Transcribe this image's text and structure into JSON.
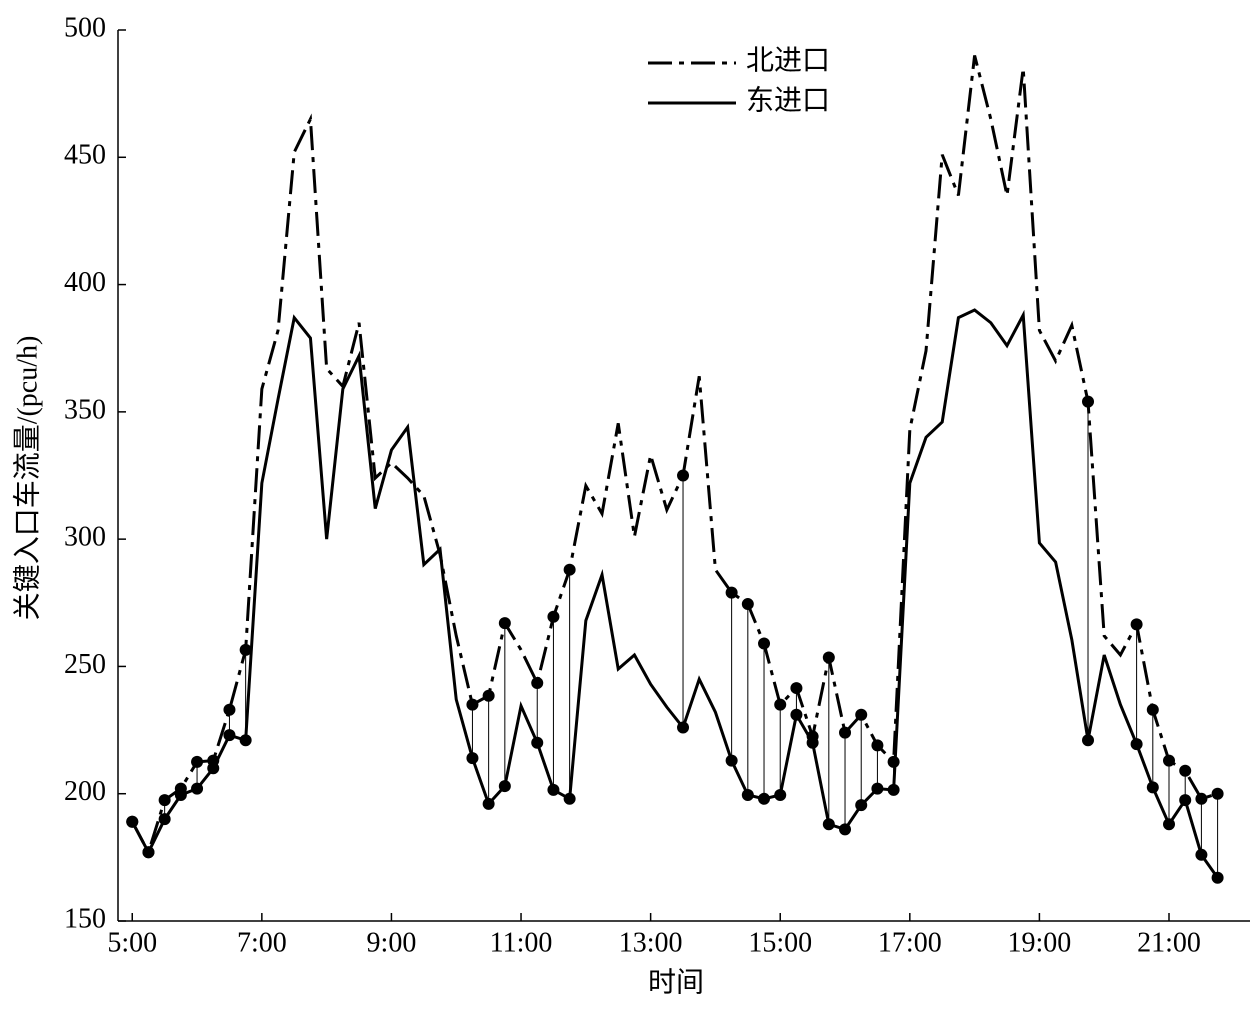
{
  "chart_data": {
    "type": "line",
    "xlabel": "时间",
    "ylabel": "关键入口车流量/(pcu/h)",
    "x": [
      5,
      5.25,
      5.5,
      5.75,
      6,
      6.25,
      6.5,
      6.75,
      7,
      7.25,
      7.5,
      7.75,
      8,
      8.25,
      8.5,
      8.75,
      9,
      9.25,
      9.5,
      9.75,
      10,
      10.25,
      10.5,
      10.75,
      11,
      11.25,
      11.5,
      11.75,
      12,
      12.25,
      12.5,
      12.75,
      13,
      13.25,
      13.5,
      13.75,
      14,
      14.25,
      14.5,
      14.75,
      15,
      15.25,
      15.5,
      15.75,
      16,
      16.25,
      16.5,
      16.75,
      17,
      17.25,
      17.5,
      17.75,
      18,
      18.25,
      18.5,
      18.75,
      19,
      19.25,
      19.5,
      19.75,
      20,
      20.25,
      20.5,
      20.75,
      21,
      21.25,
      21.5,
      21.75
    ],
    "series": [
      {
        "name": "北进口",
        "color": "#000000",
        "dash": "dashdot",
        "values": [
          189,
          177,
          197.5,
          202,
          212.5,
          213,
          233,
          256.5,
          359,
          382,
          452,
          465,
          367,
          360,
          385,
          324,
          330,
          324,
          317,
          294,
          262,
          235,
          238.5,
          267,
          256.5,
          243.5,
          269.5,
          288,
          321,
          310,
          345.5,
          301,
          333,
          311.5,
          325,
          364,
          288,
          279,
          274.5,
          259,
          235,
          241.5,
          222.5,
          253.5,
          224,
          231,
          219,
          212.5,
          343,
          374,
          451,
          435,
          490,
          465,
          435,
          485,
          382,
          370,
          384,
          354,
          262,
          254.5,
          266.5,
          233,
          213,
          209,
          198,
          200
        ],
        "markers": [
          0,
          1,
          2,
          3,
          4,
          5,
          6,
          7,
          21,
          22,
          23,
          25,
          26,
          27,
          34,
          37,
          38,
          39,
          40,
          41,
          42,
          43,
          44,
          45,
          46,
          47,
          59,
          62,
          63,
          64,
          65,
          66,
          67
        ]
      },
      {
        "name": "东进口",
        "color": "#000000",
        "dash": "solid",
        "values": [
          189,
          177,
          190,
          199.5,
          202,
          210,
          223,
          221,
          322,
          355,
          387,
          379,
          300,
          359,
          372,
          312,
          335,
          344,
          290,
          296,
          237,
          214,
          196,
          203,
          234.5,
          220,
          201.5,
          198,
          268,
          286,
          249,
          254.5,
          243,
          234,
          226,
          245,
          232,
          213,
          199.5,
          198,
          199.5,
          231,
          220,
          188,
          186,
          195.5,
          202,
          201.5,
          322,
          340,
          346,
          387,
          390,
          385,
          376,
          388,
          298.5,
          291,
          260.5,
          221,
          254.5,
          235,
          219.5,
          202.5,
          188,
          197.5,
          176,
          167
        ],
        "markers": [
          0,
          1,
          2,
          3,
          4,
          5,
          6,
          7,
          21,
          22,
          23,
          25,
          26,
          27,
          34,
          37,
          38,
          39,
          40,
          41,
          42,
          43,
          44,
          45,
          46,
          47,
          59,
          62,
          63,
          64,
          65,
          66,
          67
        ]
      }
    ],
    "xlim": [
      4.78,
      22.25
    ],
    "xticks": [
      {
        "value": 5,
        "label": "5:00"
      },
      {
        "value": 7,
        "label": "7:00"
      },
      {
        "value": 9,
        "label": "9:00"
      },
      {
        "value": 11,
        "label": "11:00"
      },
      {
        "value": 13,
        "label": "13:00"
      },
      {
        "value": 15,
        "label": "15:00"
      },
      {
        "value": 17,
        "label": "17:00"
      },
      {
        "value": 19,
        "label": "19:00"
      },
      {
        "value": 21,
        "label": "21:00"
      }
    ],
    "ylim": [
      150,
      500
    ],
    "yticks": [
      150,
      200,
      250,
      300,
      350,
      400,
      450,
      500
    ],
    "legend": "top",
    "grid": false
  }
}
